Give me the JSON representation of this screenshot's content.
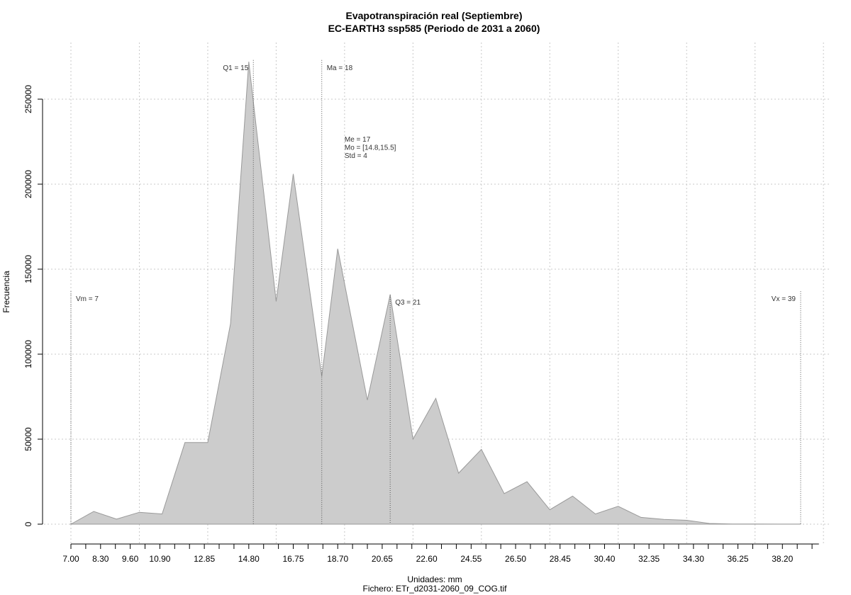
{
  "chart_data": {
    "type": "area",
    "title": "Evapotranspiración real (Septiembre)",
    "subtitle": "EC-EARTH3 ssp585 (Periodo de 2031 a 2060)",
    "xlabel": "Unidades: mm",
    "caption": "Fichero: ETr_d2031-2060_09_COG.tif",
    "ylabel": "Frecuencia",
    "fill_color": "#cccccc",
    "stroke_color": "#999999",
    "grid": true,
    "xlim": [
      6.5,
      40.8
    ],
    "ylim": [
      0,
      275000
    ],
    "x_ticks": [
      "7.00",
      "8.30",
      "9.60",
      "10.90",
      "12.85",
      "14.80",
      "16.75",
      "18.70",
      "20.65",
      "22.60",
      "24.55",
      "26.50",
      "28.45",
      "30.40",
      "32.35",
      "34.30",
      "36.25",
      "38.20"
    ],
    "y_ticks": [
      0,
      50000,
      100000,
      150000,
      200000,
      250000
    ],
    "x": [
      7.0,
      8.0,
      9.0,
      10.0,
      11.0,
      12.0,
      13.0,
      14.0,
      14.8,
      16.0,
      16.75,
      18.0,
      18.7,
      20.0,
      21.0,
      22.0,
      23.0,
      24.0,
      25.0,
      26.0,
      27.0,
      28.0,
      29.0,
      30.0,
      31.0,
      32.0,
      33.0,
      34.0,
      35.0,
      36.0,
      37.0,
      38.0,
      39.0
    ],
    "values": [
      0,
      7500,
      3000,
      7000,
      6000,
      48000,
      48000,
      118000,
      272000,
      131000,
      206000,
      87000,
      162000,
      73000,
      135000,
      50000,
      74000,
      30000,
      44000,
      18000,
      25000,
      8500,
      16500,
      6000,
      10500,
      4000,
      2800,
      2300,
      400,
      100,
      80,
      60,
      40
    ],
    "markers": [
      {
        "label": "Vm = 7",
        "x": 7.0,
        "y": 137000,
        "align": "right"
      },
      {
        "label": "Q1 = 15",
        "x": 15.0,
        "y": 273000,
        "align": "left"
      },
      {
        "label": "Ma = 18",
        "x": 18.0,
        "y": 273000,
        "align": "right"
      },
      {
        "label": "Q3 = 21",
        "x": 21.0,
        "y": 135000,
        "align": "right"
      },
      {
        "label": "Vx = 39",
        "x": 39.0,
        "y": 137000,
        "align": "left"
      }
    ],
    "stats": [
      "Me = 17",
      "Mo = [14.8,15.5]",
      "Std = 4"
    ],
    "stats_anchor": {
      "x": 19.0,
      "y": 225000
    }
  }
}
